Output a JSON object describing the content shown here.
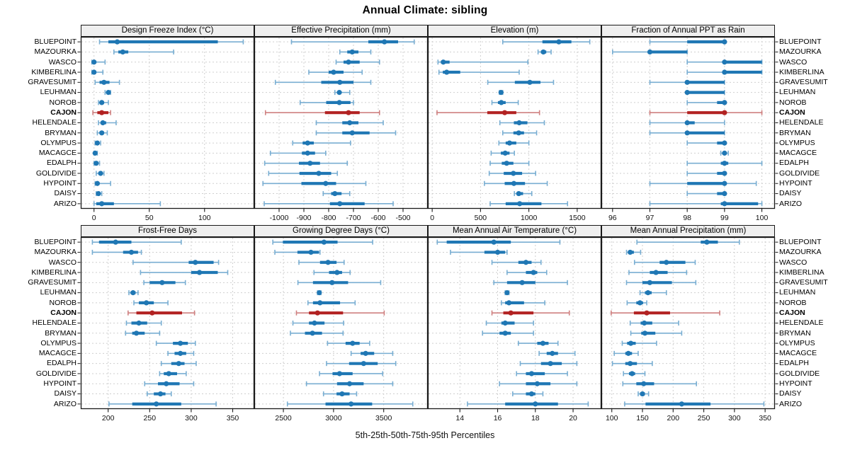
{
  "title": "Annual Climate: sibling",
  "caption": "5th-25th-50th-75th-95th Percentiles",
  "stations": [
    "BLUEPOINT",
    "MAZOURKA",
    "WASCO",
    "KIMBERLINA",
    "GRAVESUMIT",
    "LEUHMAN",
    "NOROB",
    "CAJON",
    "HELENDALE",
    "BRYMAN",
    "OLYMPUS",
    "MACAGCE",
    "EDALPH",
    "GOLDIVIDE",
    "HYPOINT",
    "DAISY",
    "ARIZO"
  ],
  "highlight_station": "CAJON",
  "colors": {
    "series": "#1f77b4",
    "series_light": "#79aed2",
    "highlight": "#b22222",
    "highlight_light": "#cf8080",
    "strip_bg": "#efefef",
    "border": "#1a1a1a",
    "grid": "#cfcfcf",
    "tick_text": "#111111"
  },
  "chart_data": {
    "type": "dotplot",
    "percentiles": [
      5,
      25,
      50,
      75,
      95
    ],
    "legend_note": "thin line = 5th-95th, thick line = 25th-75th, dot = 50th",
    "panels": [
      {
        "row": 0,
        "title": "Design Freeze Index (°C)",
        "xlim": [
          -12,
          145
        ],
        "ticks": [
          0,
          50,
          100
        ],
        "series": [
          [
            5,
            13,
            21,
            112,
            135
          ],
          [
            18,
            22,
            26,
            31,
            72
          ],
          [
            -2,
            -1,
            0,
            2,
            10
          ],
          [
            -2,
            -1,
            0,
            2,
            8
          ],
          [
            1,
            5,
            9,
            14,
            23
          ],
          [
            10,
            12,
            13,
            14,
            15
          ],
          [
            4,
            5,
            7,
            9,
            13
          ],
          [
            -1,
            3,
            7,
            13,
            15
          ],
          [
            4,
            6,
            8,
            11,
            20
          ],
          [
            3,
            5,
            7,
            9,
            12
          ],
          [
            1,
            2,
            3,
            4,
            6
          ],
          [
            0,
            0.5,
            1,
            2,
            3
          ],
          [
            0,
            1,
            2,
            3,
            5
          ],
          [
            2,
            4,
            6,
            7,
            9
          ],
          [
            1,
            2,
            3,
            5,
            15
          ],
          [
            2,
            3,
            4,
            5,
            7
          ],
          [
            0,
            2,
            7,
            18,
            60
          ]
        ]
      },
      {
        "row": 0,
        "title": "Effective Precipitation (mm)",
        "xlim": [
          -1100,
          -400
        ],
        "ticks": [
          -1000,
          -900,
          -800,
          -700,
          -600,
          -500
        ],
        "series": [
          [
            -950,
            -640,
            -575,
            -520,
            -455
          ],
          [
            -755,
            -725,
            -705,
            -680,
            -630
          ],
          [
            -770,
            -740,
            -720,
            -675,
            -595
          ],
          [
            -880,
            -800,
            -780,
            -740,
            -665
          ],
          [
            -1015,
            -830,
            -755,
            -700,
            -630
          ],
          [
            -775,
            -765,
            -757,
            -750,
            -715
          ],
          [
            -915,
            -810,
            -757,
            -712,
            -700
          ],
          [
            -1055,
            -815,
            -720,
            -675,
            -595
          ],
          [
            -850,
            -745,
            -715,
            -680,
            -580
          ],
          [
            -850,
            -745,
            -705,
            -635,
            -530
          ],
          [
            -945,
            -905,
            -885,
            -860,
            -712
          ],
          [
            -1035,
            -908,
            -885,
            -855,
            -812
          ],
          [
            -1058,
            -920,
            -875,
            -835,
            -725
          ],
          [
            -1042,
            -918,
            -840,
            -790,
            -765
          ],
          [
            -1065,
            -910,
            -812,
            -770,
            -650
          ],
          [
            -822,
            -790,
            -775,
            -748,
            -715
          ],
          [
            -1060,
            -795,
            -755,
            -655,
            -540
          ]
        ]
      },
      {
        "row": 0,
        "title": "Elevation (m)",
        "xlim": [
          -45,
          1750
        ],
        "ticks": [
          0,
          500,
          1000,
          1500
        ],
        "series": [
          [
            730,
            1140,
            1310,
            1440,
            1630
          ],
          [
            1095,
            1125,
            1150,
            1180,
            1230
          ],
          [
            60,
            90,
            115,
            180,
            990
          ],
          [
            70,
            110,
            150,
            290,
            900
          ],
          [
            575,
            855,
            1010,
            1120,
            1255
          ],
          [
            695,
            705,
            712,
            720,
            730
          ],
          [
            618,
            680,
            715,
            760,
            890
          ],
          [
            50,
            570,
            750,
            870,
            1110
          ],
          [
            700,
            845,
            900,
            985,
            1160
          ],
          [
            730,
            840,
            895,
            950,
            1080
          ],
          [
            690,
            760,
            800,
            870,
            1000
          ],
          [
            610,
            710,
            755,
            800,
            850
          ],
          [
            600,
            720,
            770,
            840,
            1000
          ],
          [
            590,
            740,
            840,
            930,
            1070
          ],
          [
            540,
            750,
            845,
            960,
            1190
          ],
          [
            850,
            875,
            895,
            940,
            1030
          ],
          [
            600,
            760,
            905,
            1130,
            1400
          ]
        ]
      },
      {
        "row": 0,
        "title": "Fraction of Annual PPT as Rain",
        "xlim": [
          95.7,
          100.35
        ],
        "ticks": [
          96,
          97,
          98,
          99,
          100
        ],
        "series": [
          [
            97,
            98,
            99,
            99,
            99
          ],
          [
            96,
            97,
            97,
            98,
            98
          ],
          [
            98,
            99,
            99,
            100,
            100
          ],
          [
            98,
            99,
            99,
            100,
            100
          ],
          [
            97,
            98,
            98,
            99,
            99
          ],
          [
            98,
            98,
            98,
            99,
            99
          ],
          [
            98,
            98.8,
            99,
            99,
            99
          ],
          [
            97,
            98,
            99,
            99,
            100
          ],
          [
            97,
            98,
            98,
            98.2,
            99
          ],
          [
            97,
            98,
            98,
            99,
            99
          ],
          [
            98,
            98.8,
            99,
            99,
            99
          ],
          [
            98.9,
            98.95,
            99,
            99.05,
            99.1
          ],
          [
            98,
            98.9,
            99,
            99.1,
            100
          ],
          [
            98,
            98.8,
            99,
            99,
            99
          ],
          [
            97,
            98,
            99,
            99,
            99.85
          ],
          [
            98,
            98.8,
            99,
            99,
            99
          ],
          [
            97,
            98.9,
            99,
            99.9,
            100
          ]
        ]
      },
      {
        "row": 1,
        "title": "Frost-Free Days",
        "xlim": [
          167,
          376
        ],
        "ticks": [
          200,
          250,
          300,
          350
        ],
        "series": [
          [
            181,
            189,
            209,
            228,
            288
          ],
          [
            181,
            218,
            228,
            236,
            240
          ],
          [
            230,
            297,
            305,
            327,
            333
          ],
          [
            239,
            300,
            310,
            332,
            344
          ],
          [
            243,
            250,
            265,
            281,
            293
          ],
          [
            225,
            227,
            230,
            233,
            236
          ],
          [
            231,
            237,
            246,
            255,
            272
          ],
          [
            224,
            234,
            253,
            289,
            304
          ],
          [
            222,
            228,
            237,
            247,
            264
          ],
          [
            221,
            229,
            234,
            244,
            262
          ],
          [
            258,
            278,
            287,
            296,
            305
          ],
          [
            272,
            280,
            287,
            294,
            303
          ],
          [
            264,
            276,
            285,
            292,
            306
          ],
          [
            262,
            267,
            273,
            283,
            294
          ],
          [
            244,
            260,
            270,
            286,
            303
          ],
          [
            247,
            255,
            263,
            269,
            276
          ],
          [
            201,
            229,
            258,
            288,
            330
          ]
        ]
      },
      {
        "row": 1,
        "title": "Growing Degree Days (°C)",
        "xlim": [
          2210,
          3940
        ],
        "ticks": [
          2500,
          3000,
          3500
        ],
        "series": [
          [
            2395,
            2495,
            2905,
            3040,
            3390
          ],
          [
            2415,
            2640,
            2775,
            2855,
            2865
          ],
          [
            2655,
            2865,
            2945,
            3030,
            3105
          ],
          [
            2805,
            2955,
            3035,
            3085,
            3165
          ],
          [
            2645,
            2795,
            2985,
            3145,
            3470
          ],
          [
            2840,
            2850,
            2858,
            2865,
            2875
          ],
          [
            2745,
            2795,
            2865,
            3065,
            3215
          ],
          [
            2630,
            2755,
            2840,
            3095,
            3505
          ],
          [
            2595,
            2755,
            2810,
            2910,
            3100
          ],
          [
            2570,
            2715,
            2790,
            2885,
            3095
          ],
          [
            2940,
            3120,
            3190,
            3260,
            3360
          ],
          [
            3175,
            3270,
            3320,
            3405,
            3590
          ],
          [
            2930,
            3155,
            3300,
            3440,
            3620
          ],
          [
            2860,
            2990,
            3060,
            3190,
            3490
          ],
          [
            2730,
            3035,
            3160,
            3300,
            3590
          ],
          [
            2900,
            3030,
            3085,
            3160,
            3230
          ],
          [
            2540,
            2920,
            3175,
            3385,
            3790
          ]
        ]
      },
      {
        "row": 1,
        "title": "Mean Annual Air Temperature (°C)",
        "xlim": [
          12.3,
          21.5
        ],
        "ticks": [
          14,
          16,
          18,
          20
        ],
        "series": [
          [
            12.8,
            13.3,
            15.8,
            16.7,
            19.3
          ],
          [
            13.5,
            15.3,
            16.0,
            16.4,
            16.5
          ],
          [
            15.7,
            17.1,
            17.5,
            17.8,
            18.3
          ],
          [
            16.5,
            17.5,
            17.9,
            18.1,
            18.6
          ],
          [
            15.8,
            16.5,
            17.3,
            18.0,
            19.7
          ],
          [
            16.4,
            16.45,
            16.5,
            16.55,
            16.6
          ],
          [
            16.2,
            16.4,
            16.6,
            17.4,
            18.5
          ],
          [
            15.7,
            16.3,
            16.7,
            17.9,
            19.8
          ],
          [
            15.4,
            16.2,
            16.4,
            16.9,
            17.9
          ],
          [
            15.2,
            16.1,
            16.4,
            16.7,
            17.9
          ],
          [
            17.1,
            18.1,
            18.4,
            18.7,
            19.2
          ],
          [
            18.2,
            18.6,
            18.9,
            19.2,
            20.1
          ],
          [
            17.2,
            18.3,
            18.8,
            19.4,
            20.2
          ],
          [
            17.0,
            17.5,
            17.8,
            18.5,
            19.7
          ],
          [
            16.1,
            17.5,
            18.1,
            18.8,
            20.2
          ],
          [
            16.8,
            17.5,
            17.8,
            18.0,
            18.4
          ],
          [
            14.4,
            16.4,
            18.0,
            19.2,
            20.8
          ]
        ]
      },
      {
        "row": 1,
        "title": "Mean Annual Precipitation (mm)",
        "xlim": [
          83,
          366
        ],
        "ticks": [
          100,
          150,
          200,
          250,
          300,
          350
        ],
        "series": [
          [
            141,
            245,
            255,
            273,
            308
          ],
          [
            124,
            127,
            130,
            136,
            147
          ],
          [
            137,
            178,
            189,
            220,
            236
          ],
          [
            128,
            162,
            172,
            191,
            222
          ],
          [
            124,
            150,
            162,
            198,
            237
          ],
          [
            146,
            154,
            159,
            165,
            189
          ],
          [
            125,
            140,
            146,
            151,
            157
          ],
          [
            99,
            136,
            157,
            195,
            276
          ],
          [
            130,
            147,
            153,
            166,
            209
          ],
          [
            131,
            148,
            154,
            171,
            214
          ],
          [
            117,
            125,
            131,
            139,
            173
          ],
          [
            104,
            122,
            127,
            133,
            143
          ],
          [
            101,
            122,
            130,
            141,
            166
          ],
          [
            119,
            128,
            133,
            138,
            154
          ],
          [
            118,
            140,
            152,
            169,
            238
          ],
          [
            143,
            146,
            150,
            154,
            160
          ],
          [
            121,
            155,
            214,
            261,
            348
          ]
        ]
      }
    ]
  }
}
